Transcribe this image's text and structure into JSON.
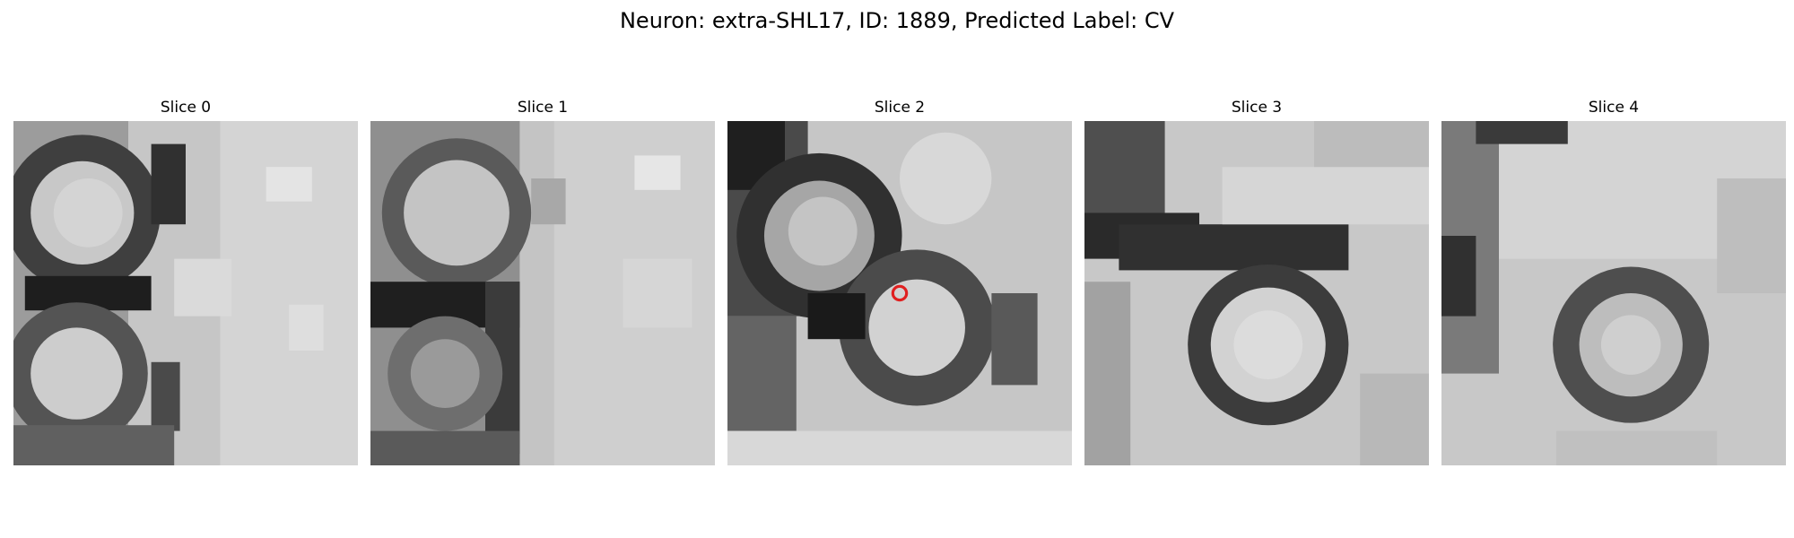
{
  "figure": {
    "title": "Neuron: extra-SHL17, ID: 1889, Predicted Label: CV"
  },
  "panels": [
    {
      "title": "Slice 0"
    },
    {
      "title": "Slice 1"
    },
    {
      "title": "Slice 2"
    },
    {
      "title": "Slice 3"
    },
    {
      "title": "Slice 4"
    }
  ],
  "image": {
    "colormap": "grayscale",
    "marker": {
      "slice": 2,
      "shape": "circle",
      "color": "#e02020"
    }
  }
}
